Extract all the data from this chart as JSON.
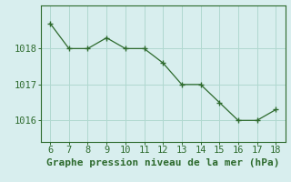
{
  "x": [
    6,
    7,
    8,
    9,
    10,
    11,
    12,
    13,
    14,
    15,
    16,
    17,
    18
  ],
  "y": [
    1018.7,
    1018.0,
    1018.0,
    1018.3,
    1018.0,
    1018.0,
    1017.6,
    1017.0,
    1017.0,
    1016.5,
    1016.0,
    1016.0,
    1016.3
  ],
  "line_color": "#2d6a2d",
  "marker": "+",
  "bg_color": "#d8eeee",
  "grid_color": "#b0d8d0",
  "xlabel": "Graphe pression niveau de la mer (hPa)",
  "xlabel_color": "#2d6a2d",
  "tick_color": "#2d6a2d",
  "spine_color": "#2d6a2d",
  "xlim": [
    5.5,
    18.5
  ],
  "ylim": [
    1015.4,
    1019.2
  ],
  "yticks": [
    1016,
    1017,
    1018
  ],
  "xticks": [
    6,
    7,
    8,
    9,
    10,
    11,
    12,
    13,
    14,
    15,
    16,
    17,
    18
  ],
  "linewidth": 0.9,
  "markersize": 4,
  "font_size": 7.5,
  "xlabel_fontsize": 8
}
